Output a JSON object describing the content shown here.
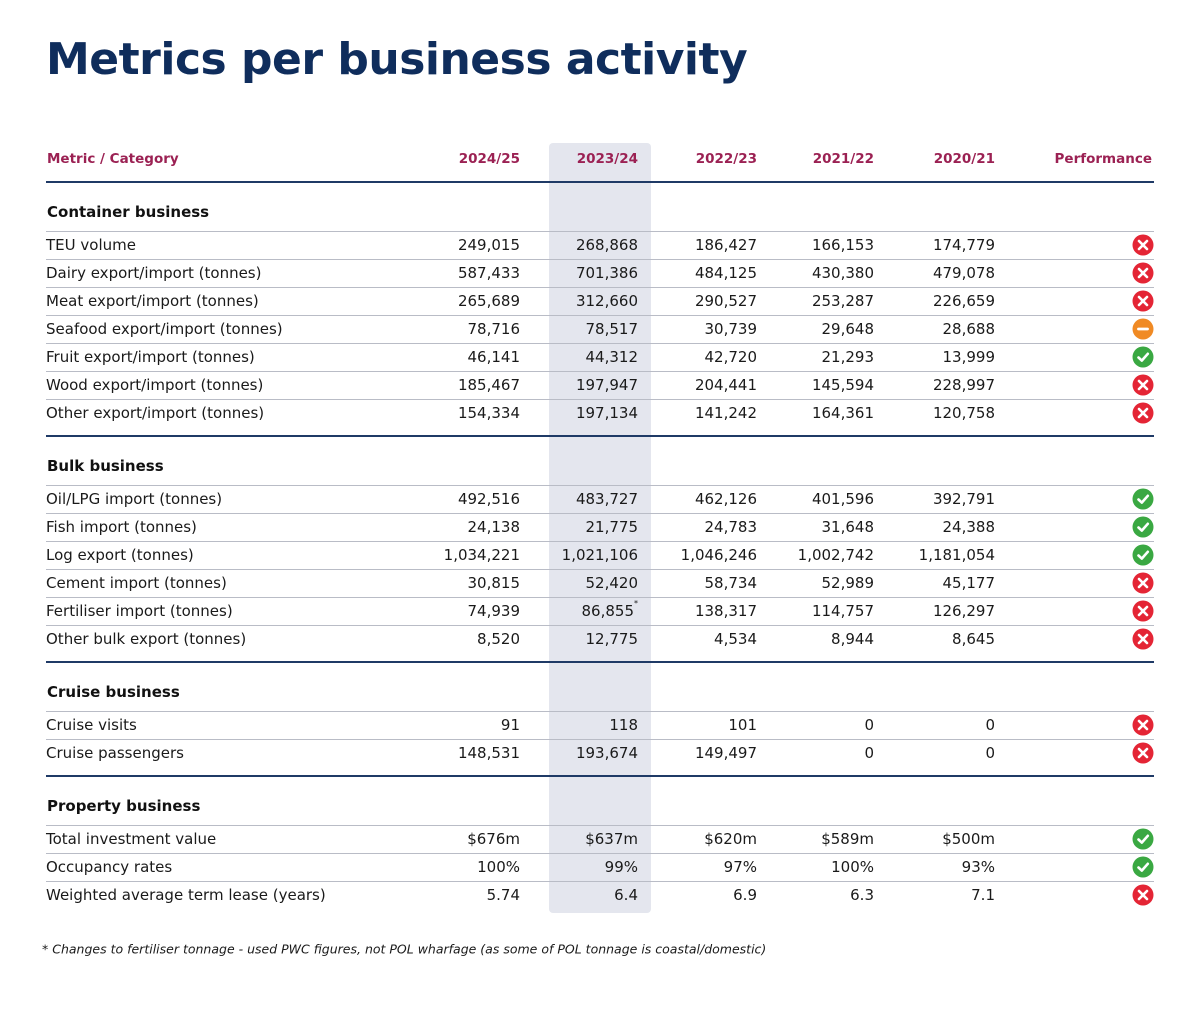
{
  "title": "Metrics per business activity",
  "table": {
    "headers": [
      "Metric / Category",
      "2024/25",
      "2023/24",
      "2022/23",
      "2021/22",
      "2020/21",
      "Performance"
    ],
    "sections": [
      {
        "title": "Container business",
        "rows": [
          {
            "label": "TEU volume",
            "values": [
              "249,015",
              "268,868",
              "186,427",
              "166,153",
              "174,779"
            ],
            "performance": "cross"
          },
          {
            "label": "Dairy export/import (tonnes)",
            "values": [
              "587,433",
              "701,386",
              "484,125",
              "430,380",
              "479,078"
            ],
            "performance": "cross"
          },
          {
            "label": "Meat export/import (tonnes)",
            "values": [
              "265,689",
              "312,660",
              "290,527",
              "253,287",
              "226,659"
            ],
            "performance": "cross"
          },
          {
            "label": "Seafood export/import (tonnes)",
            "values": [
              "78,716",
              "78,517",
              "30,739",
              "29,648",
              "28,688"
            ],
            "performance": "dash"
          },
          {
            "label": "Fruit export/import (tonnes)",
            "values": [
              "46,141",
              "44,312",
              "42,720",
              "21,293",
              "13,999"
            ],
            "performance": "check"
          },
          {
            "label": "Wood export/import (tonnes)",
            "values": [
              "185,467",
              "197,947",
              "204,441",
              "145,594",
              "228,997"
            ],
            "performance": "cross"
          },
          {
            "label": "Other export/import (tonnes)",
            "values": [
              "154,334",
              "197,134",
              "141,242",
              "164,361",
              "120,758"
            ],
            "performance": "cross"
          }
        ]
      },
      {
        "title": "Bulk business",
        "rows": [
          {
            "label": "Oil/LPG import (tonnes)",
            "values": [
              "492,516",
              "483,727",
              "462,126",
              "401,596",
              "392,791"
            ],
            "performance": "check"
          },
          {
            "label": "Fish import (tonnes)",
            "values": [
              "24,138",
              "21,775",
              "24,783",
              "31,648",
              "24,388"
            ],
            "performance": "check"
          },
          {
            "label": "Log export (tonnes)",
            "values": [
              "1,034,221",
              "1,021,106",
              "1,046,246",
              "1,002,742",
              "1,181,054"
            ],
            "performance": "check"
          },
          {
            "label": "Cement import (tonnes)",
            "values": [
              "30,815",
              "52,420",
              "58,734",
              "52,989",
              "45,177"
            ],
            "performance": "cross"
          },
          {
            "label": "Fertiliser import (tonnes)",
            "values": [
              "74,939",
              {
                "text": "86,855",
                "note": "*"
              },
              "138,317",
              "114,757",
              "126,297"
            ],
            "performance": "cross"
          },
          {
            "label": "Other bulk export (tonnes)",
            "values": [
              "8,520",
              "12,775",
              "4,534",
              "8,944",
              "8,645"
            ],
            "performance": "cross"
          }
        ]
      },
      {
        "title": "Cruise business",
        "rows": [
          {
            "label": "Cruise visits",
            "values": [
              "91",
              "118",
              "101",
              "0",
              "0"
            ],
            "performance": "cross"
          },
          {
            "label": "Cruise passengers",
            "values": [
              "148,531",
              "193,674",
              "149,497",
              "0",
              "0"
            ],
            "performance": "cross"
          }
        ]
      },
      {
        "title": "Property business",
        "rows": [
          {
            "label": "Total investment value",
            "values": [
              "$676m",
              "$637m",
              "$620m",
              "$589m",
              "$500m"
            ],
            "performance": "check"
          },
          {
            "label": "Occupancy rates",
            "values": [
              "100%",
              "99%",
              "97%",
              "100%",
              "93%"
            ],
            "performance": "check"
          },
          {
            "label": "Weighted average term lease (years)",
            "values": [
              "5.74",
              "6.4",
              "6.9",
              "6.3",
              "7.1"
            ],
            "performance": "cross"
          }
        ]
      }
    ]
  },
  "footnote": "* Changes to fertiliser tonnage - used PWC figures, not POL wharfage (as some of POL tonnage is coastal/domestic)"
}
